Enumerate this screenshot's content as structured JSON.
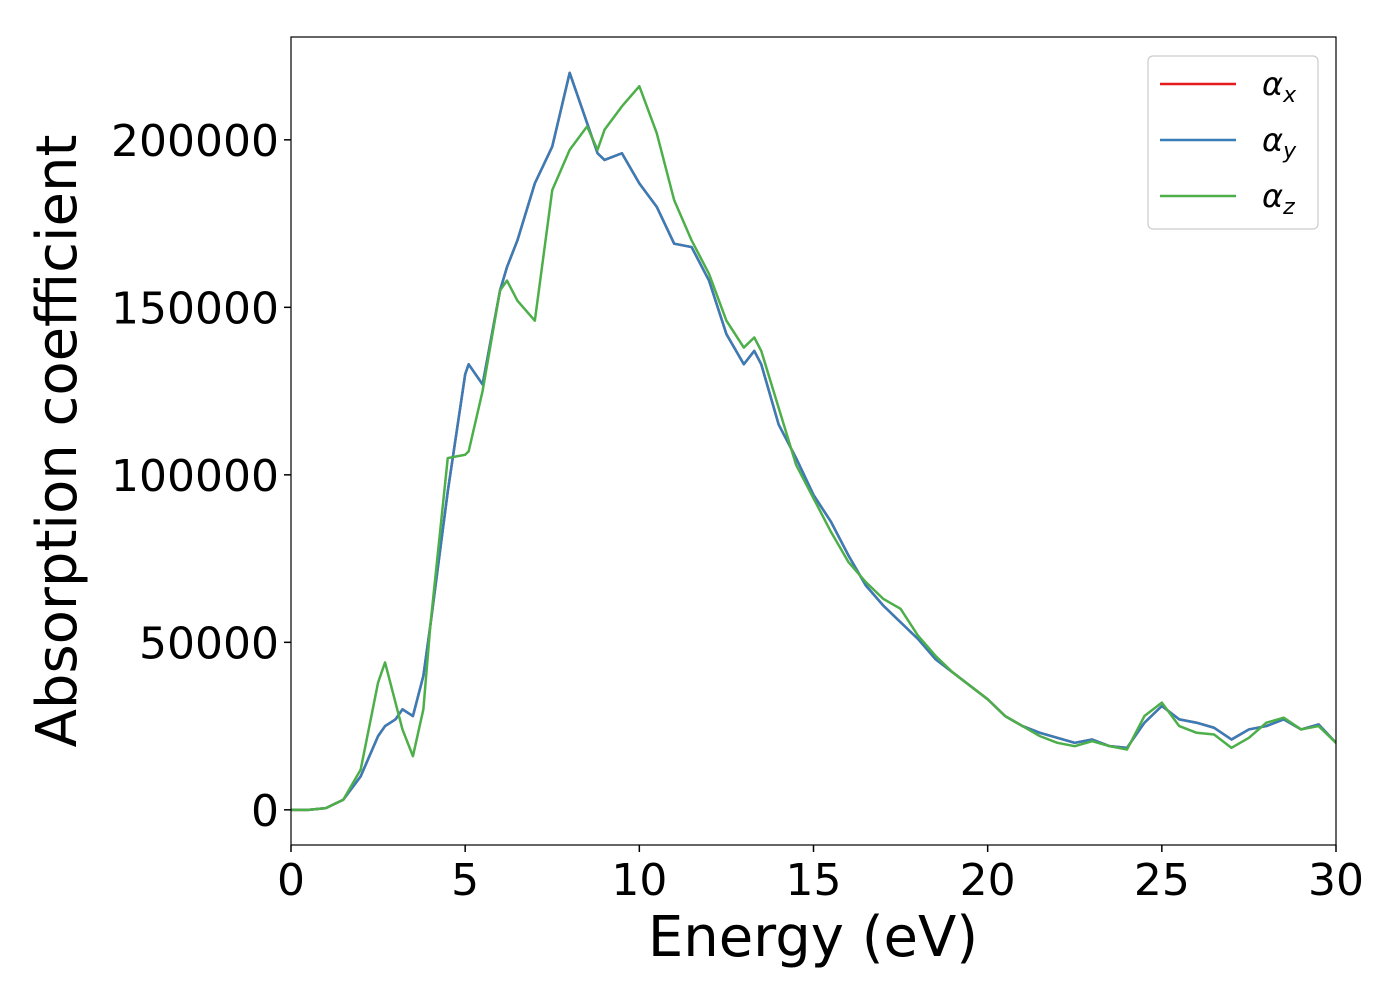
{
  "chart_data": {
    "type": "line",
    "xlabel": "Energy (eV)",
    "ylabel": "Absorption coefficient",
    "x": [
      0,
      0.5,
      1,
      1.5,
      2,
      2.5,
      2.7,
      3,
      3.2,
      3.5,
      3.8,
      4,
      4.5,
      5,
      5.1,
      5.5,
      6,
      6.2,
      6.5,
      7,
      7.5,
      8,
      8.5,
      8.8,
      9,
      9.5,
      10,
      10.5,
      11,
      11.5,
      12,
      12.5,
      13,
      13.3,
      13.5,
      14,
      14.5,
      15,
      15.5,
      16,
      16.5,
      17,
      17.5,
      18,
      18.5,
      19,
      19.5,
      20,
      20.5,
      21,
      21.5,
      22,
      22.5,
      23,
      23.5,
      24,
      24.5,
      25,
      25.5,
      26,
      26.5,
      27,
      27.5,
      28,
      28.5,
      29,
      29.5,
      30
    ],
    "series": [
      {
        "name": "αx",
        "color": "#e41a1c",
        "values": [
          0,
          0,
          500,
          3000,
          10000,
          22000,
          25000,
          27000,
          30000,
          28000,
          40000,
          55000,
          95000,
          130000,
          133000,
          127000,
          155000,
          162000,
          170000,
          187000,
          198000,
          220000,
          205000,
          196000,
          194000,
          196000,
          187000,
          180000,
          169000,
          168000,
          158000,
          142000,
          133000,
          137000,
          133000,
          115000,
          105000,
          94000,
          86000,
          76000,
          67000,
          61000,
          56000,
          51000,
          45000,
          41000,
          37000,
          33000,
          28000,
          25000,
          23000,
          21500,
          20000,
          21000,
          19000,
          18500,
          26000,
          31000,
          27000,
          26000,
          24500,
          21000,
          24000,
          25000,
          27000,
          24000,
          25500,
          20000
        ]
      },
      {
        "name": "αy",
        "color": "#377eb8",
        "values": [
          0,
          0,
          500,
          3000,
          10000,
          22000,
          25000,
          27000,
          30000,
          28000,
          40000,
          55000,
          95000,
          130000,
          133000,
          127000,
          155000,
          162000,
          170000,
          187000,
          198000,
          220000,
          205000,
          196000,
          194000,
          196000,
          187000,
          180000,
          169000,
          168000,
          158000,
          142000,
          133000,
          137000,
          133000,
          115000,
          105000,
          94000,
          86000,
          76000,
          67000,
          61000,
          56000,
          51000,
          45000,
          41000,
          37000,
          33000,
          28000,
          25000,
          23000,
          21500,
          20000,
          21000,
          19000,
          18500,
          26000,
          31000,
          27000,
          26000,
          24500,
          21000,
          24000,
          25000,
          27000,
          24000,
          25500,
          20000
        ]
      },
      {
        "name": "αz",
        "color": "#4daf4a",
        "values": [
          0,
          0,
          500,
          3000,
          12000,
          38000,
          44000,
          32000,
          24000,
          16000,
          30000,
          55000,
          105000,
          106000,
          107000,
          125000,
          155000,
          158000,
          152000,
          146000,
          185000,
          197000,
          204000,
          197000,
          203000,
          210000,
          216000,
          202000,
          182000,
          170000,
          160000,
          146000,
          138000,
          141000,
          137000,
          120000,
          103000,
          93000,
          83000,
          74000,
          68000,
          63000,
          60000,
          52000,
          46000,
          41000,
          37000,
          33000,
          28000,
          25000,
          22000,
          20000,
          19000,
          20500,
          19000,
          18000,
          28000,
          32000,
          25000,
          23000,
          22500,
          18500,
          21500,
          26000,
          27500,
          24000,
          25000,
          20000
        ]
      }
    ],
    "xlim": [
      0,
      30
    ],
    "ylim": [
      -10500,
      230700
    ],
    "xticks": [
      0,
      5,
      10,
      15,
      20,
      25,
      30
    ],
    "yticks": [
      0,
      50000,
      100000,
      150000,
      200000
    ],
    "legend": "upper right"
  }
}
